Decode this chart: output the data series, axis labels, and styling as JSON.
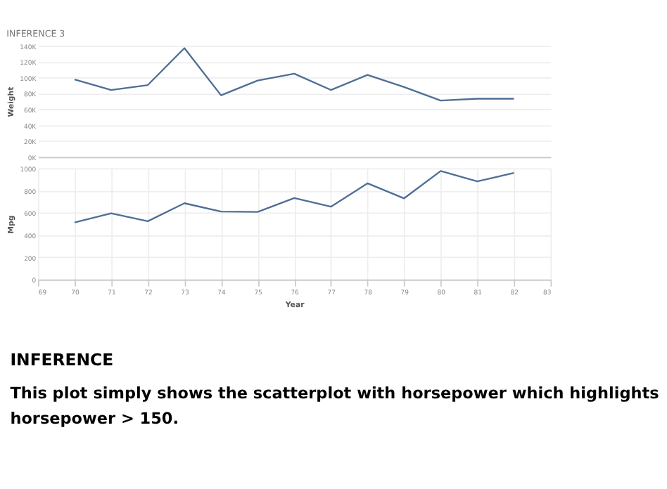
{
  "chart_data": [
    {
      "type": "line",
      "title": "INFERENCE 3",
      "ylabel": "Weight",
      "x": [
        70,
        71,
        72,
        73,
        74,
        75,
        76,
        77,
        78,
        79,
        80,
        81,
        82
      ],
      "series": [
        {
          "color": "#4e6e96",
          "values": [
            97.6,
            84.3,
            90.5,
            137,
            77.6,
            96.2,
            104.8,
            84.3,
            103.3,
            88,
            71,
            73.3,
            73.3
          ]
        }
      ],
      "xlim": [
        69,
        83
      ],
      "ylim": [
        0,
        140
      ],
      "yticks": [
        {
          "value": 0,
          "label": "0K"
        },
        {
          "value": 20,
          "label": "20K"
        },
        {
          "value": 40,
          "label": "40K"
        },
        {
          "value": 60,
          "label": "60K"
        },
        {
          "value": 80,
          "label": "80K"
        },
        {
          "value": 100,
          "label": "100K"
        },
        {
          "value": 120,
          "label": "120K"
        },
        {
          "value": 140,
          "label": "140K"
        }
      ],
      "grid": true,
      "tick_labels": "y"
    },
    {
      "type": "line",
      "xlabel": "Year",
      "ylabel": "Mpg",
      "x": [
        70,
        71,
        72,
        73,
        74,
        75,
        76,
        77,
        78,
        79,
        80,
        81,
        82
      ],
      "series": [
        {
          "color": "#4e6e96",
          "values": [
            513,
            595,
            524,
            686,
            611,
            608,
            733,
            655,
            865,
            730,
            976,
            882,
            959
          ]
        }
      ],
      "xlim": [
        69,
        83
      ],
      "xticks": [
        69,
        70,
        71,
        72,
        73,
        74,
        75,
        76,
        77,
        78,
        79,
        80,
        81,
        82,
        83
      ],
      "ylim": [
        0,
        1000
      ],
      "yticks": [
        0,
        200,
        400,
        600,
        800,
        1000
      ],
      "grid": true,
      "annotations": [
        "INFERENCE",
        "This plot simply shows the scatterplot with horsepower which highlights",
        "horsepower > 150."
      ]
    }
  ]
}
